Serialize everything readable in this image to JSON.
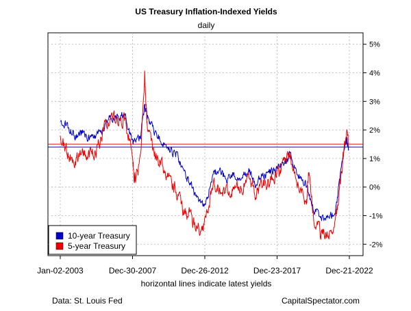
{
  "chart_data": {
    "type": "line",
    "title": "US Treasury Inflation-Indexed Yields",
    "subtitle": "daily",
    "caption": "horizontal lines indicate latest yields",
    "source_note": "Data: St. Louis Fed",
    "credit": "CapitalSpectator.com",
    "x_tick_labels": [
      "Jan-02-2003",
      "Dec-30-2007",
      "Dec-26-2012",
      "Dec-23-2017",
      "Dec-21-2022"
    ],
    "y_axis": {
      "side": "right",
      "range": [
        -2.4,
        5.4
      ],
      "ticks": [
        5,
        4,
        3,
        2,
        1,
        0,
        -1,
        -2
      ],
      "tick_labels": [
        "5%",
        "4%",
        "3%",
        "2%",
        "1%",
        "0%",
        "-1%",
        "-2%"
      ]
    },
    "grid": true,
    "legend_position": "bottom-left",
    "series": [
      {
        "name": "10-year Treasury",
        "color": "#0000cc",
        "latest": 1.4,
        "x": [
          "2003-01",
          "2003-07",
          "2004-01",
          "2004-07",
          "2005-01",
          "2005-07",
          "2006-01",
          "2006-07",
          "2007-01",
          "2007-07",
          "2008-01",
          "2008-07",
          "2008-11",
          "2009-01",
          "2009-07",
          "2010-01",
          "2010-07",
          "2011-01",
          "2011-07",
          "2012-01",
          "2012-07",
          "2013-01",
          "2013-07",
          "2014-01",
          "2014-07",
          "2015-01",
          "2015-07",
          "2016-01",
          "2016-07",
          "2017-01",
          "2017-07",
          "2018-01",
          "2018-07",
          "2018-11",
          "2019-07",
          "2020-01",
          "2020-07",
          "2021-01",
          "2021-07",
          "2022-01",
          "2022-05",
          "2022-10",
          "2022-12"
        ],
        "values": [
          2.3,
          2.1,
          1.8,
          1.9,
          1.7,
          1.7,
          2.1,
          2.5,
          2.4,
          2.6,
          1.5,
          1.7,
          2.8,
          2.5,
          1.9,
          1.6,
          1.3,
          1.1,
          0.6,
          0.1,
          -0.5,
          -0.7,
          0.4,
          0.6,
          0.3,
          0.4,
          0.3,
          0.6,
          0.1,
          0.4,
          0.5,
          0.7,
          0.8,
          1.1,
          0.4,
          0.1,
          -0.8,
          -1.0,
          -1.1,
          -0.8,
          0.3,
          1.7,
          1.4
        ]
      },
      {
        "name": "5-year Treasury",
        "color": "#ee0000",
        "latest": 1.5,
        "x": [
          "2003-01",
          "2003-07",
          "2004-01",
          "2004-07",
          "2005-01",
          "2005-07",
          "2006-01",
          "2006-07",
          "2007-01",
          "2007-07",
          "2008-01",
          "2008-03",
          "2008-07",
          "2008-11",
          "2009-01",
          "2009-07",
          "2010-01",
          "2010-07",
          "2011-01",
          "2011-07",
          "2012-01",
          "2012-07",
          "2013-01",
          "2013-07",
          "2014-01",
          "2014-07",
          "2015-01",
          "2015-07",
          "2016-01",
          "2016-07",
          "2017-01",
          "2017-07",
          "2018-01",
          "2018-07",
          "2018-11",
          "2019-07",
          "2020-01",
          "2020-03",
          "2020-07",
          "2021-01",
          "2021-07",
          "2022-01",
          "2022-05",
          "2022-10",
          "2022-12"
        ],
        "values": [
          1.8,
          1.2,
          0.9,
          1.4,
          1.1,
          1.3,
          2.0,
          2.5,
          2.3,
          2.4,
          0.9,
          0.2,
          0.8,
          4.0,
          2.0,
          1.1,
          0.8,
          0.3,
          -0.1,
          -0.8,
          -1.0,
          -1.5,
          -1.3,
          0.0,
          0.0,
          -0.2,
          -0.2,
          0.0,
          0.3,
          -0.2,
          0.1,
          0.2,
          0.5,
          0.8,
          1.1,
          0.0,
          -0.5,
          0.6,
          -1.2,
          -1.6,
          -1.8,
          -1.3,
          0.1,
          1.9,
          1.5
        ]
      }
    ]
  }
}
